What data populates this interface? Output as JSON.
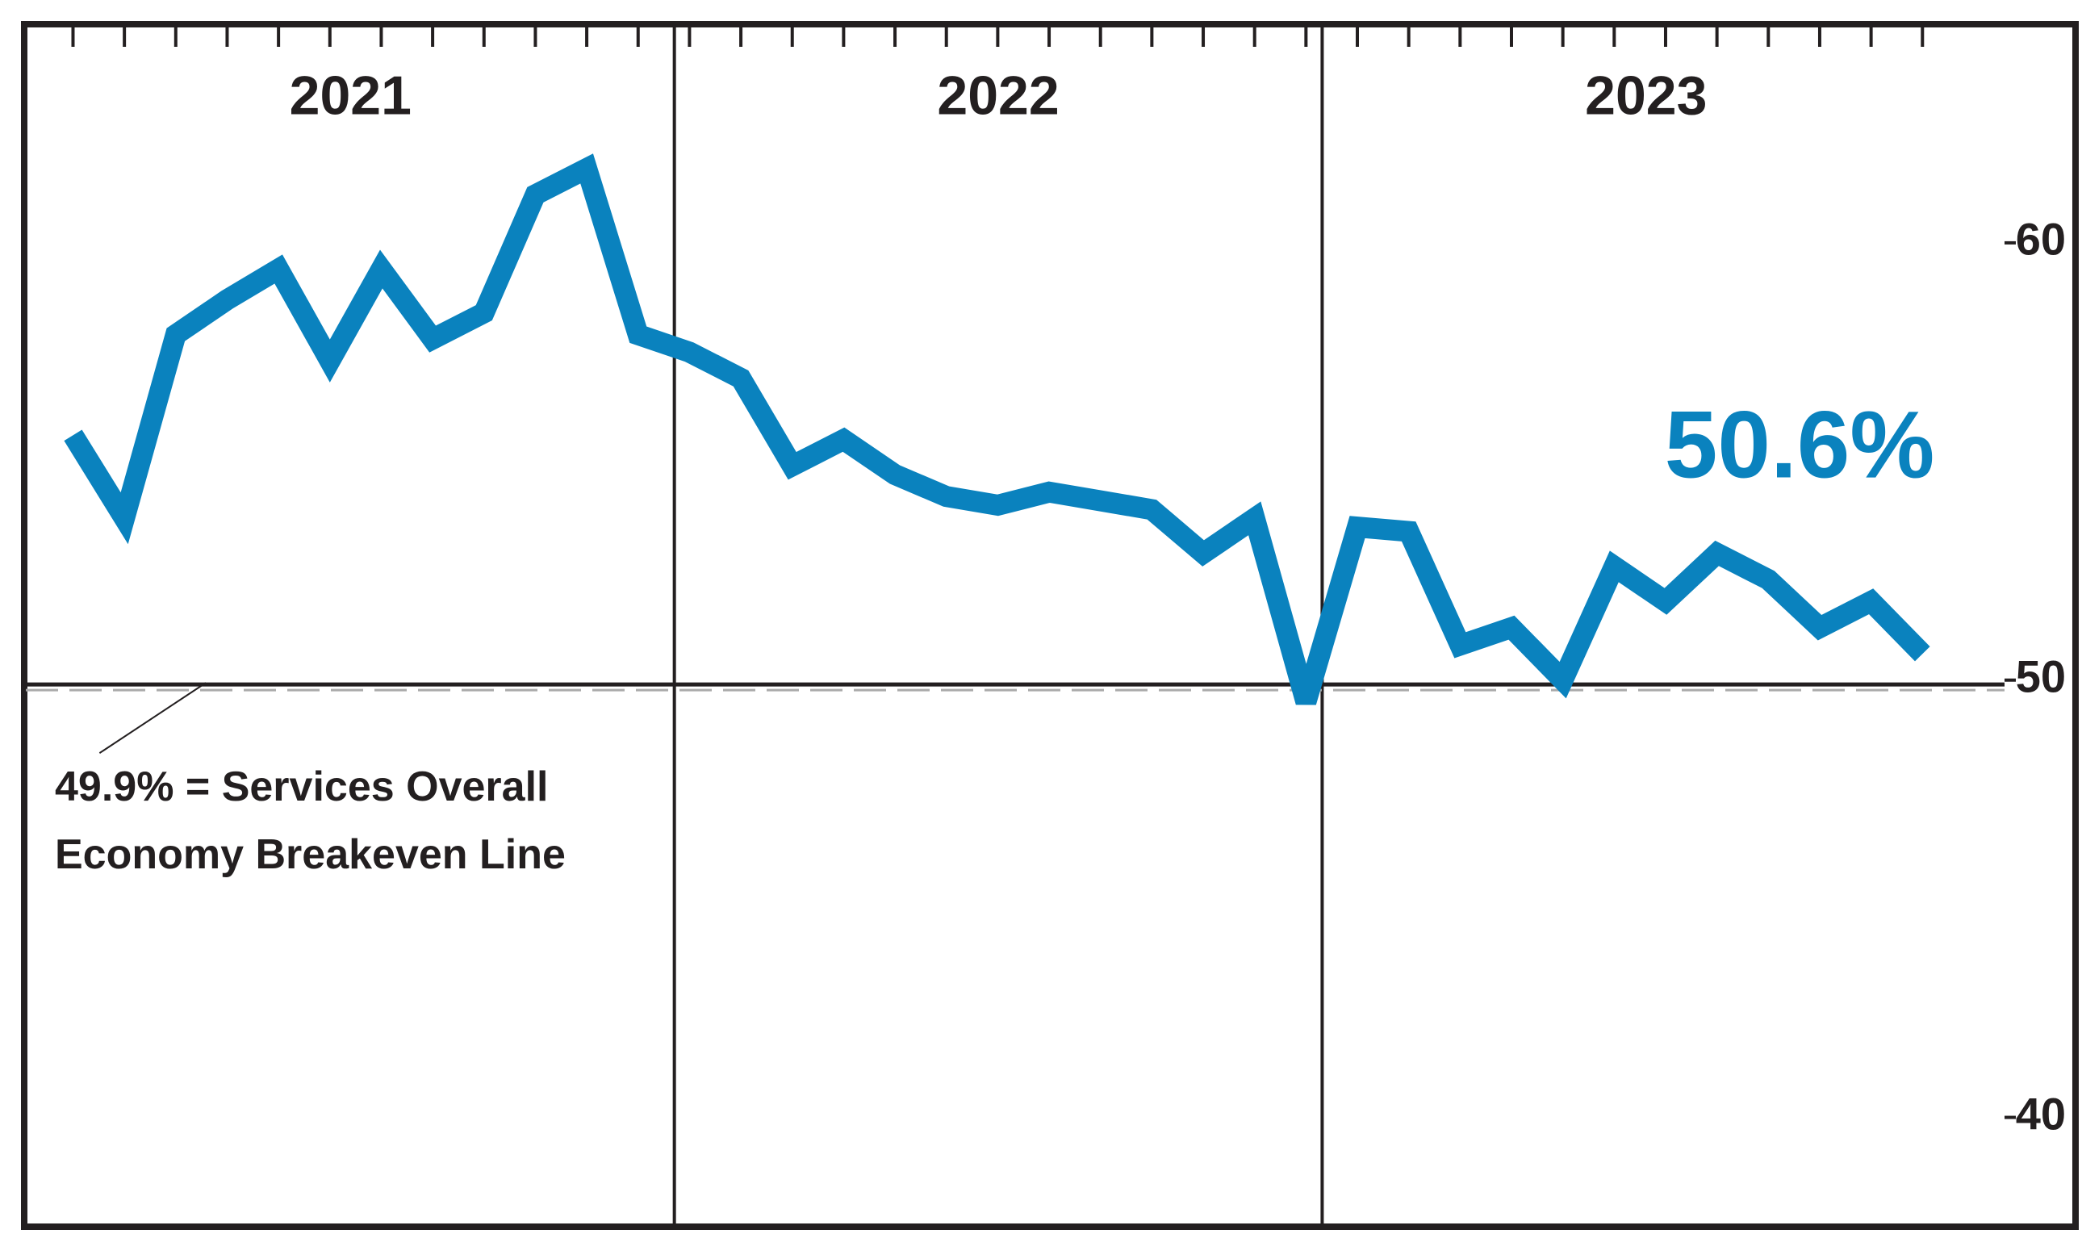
{
  "chart_data": {
    "type": "line",
    "periods": [
      "2021",
      "2022",
      "2023"
    ],
    "series": [
      {
        "color": "#0a82be",
        "values": [
          55.6,
          53.7,
          57.9,
          58.7,
          59.4,
          57.3,
          59.4,
          57.8,
          58.4,
          61.1,
          61.7,
          57.9,
          57.5,
          56.9,
          54.9,
          55.5,
          54.7,
          54.2,
          54.0,
          54.3,
          54.1,
          53.9,
          52.9,
          53.7,
          49.5,
          53.5,
          53.4,
          50.8,
          51.2,
          50.0,
          52.6,
          51.8,
          52.9,
          52.3,
          51.2,
          51.8,
          50.6
        ],
        "value_labels": {
          "36": "50.6%"
        }
      }
    ],
    "breakeven": {
      "value": 49.9,
      "label": [
        "49.9% = Services Overall",
        "Economy Breakeven Line"
      ]
    },
    "ylim": [
      37.5,
      65
    ],
    "yticks": [
      40,
      50,
      60
    ],
    "y_axis_side": "right"
  }
}
